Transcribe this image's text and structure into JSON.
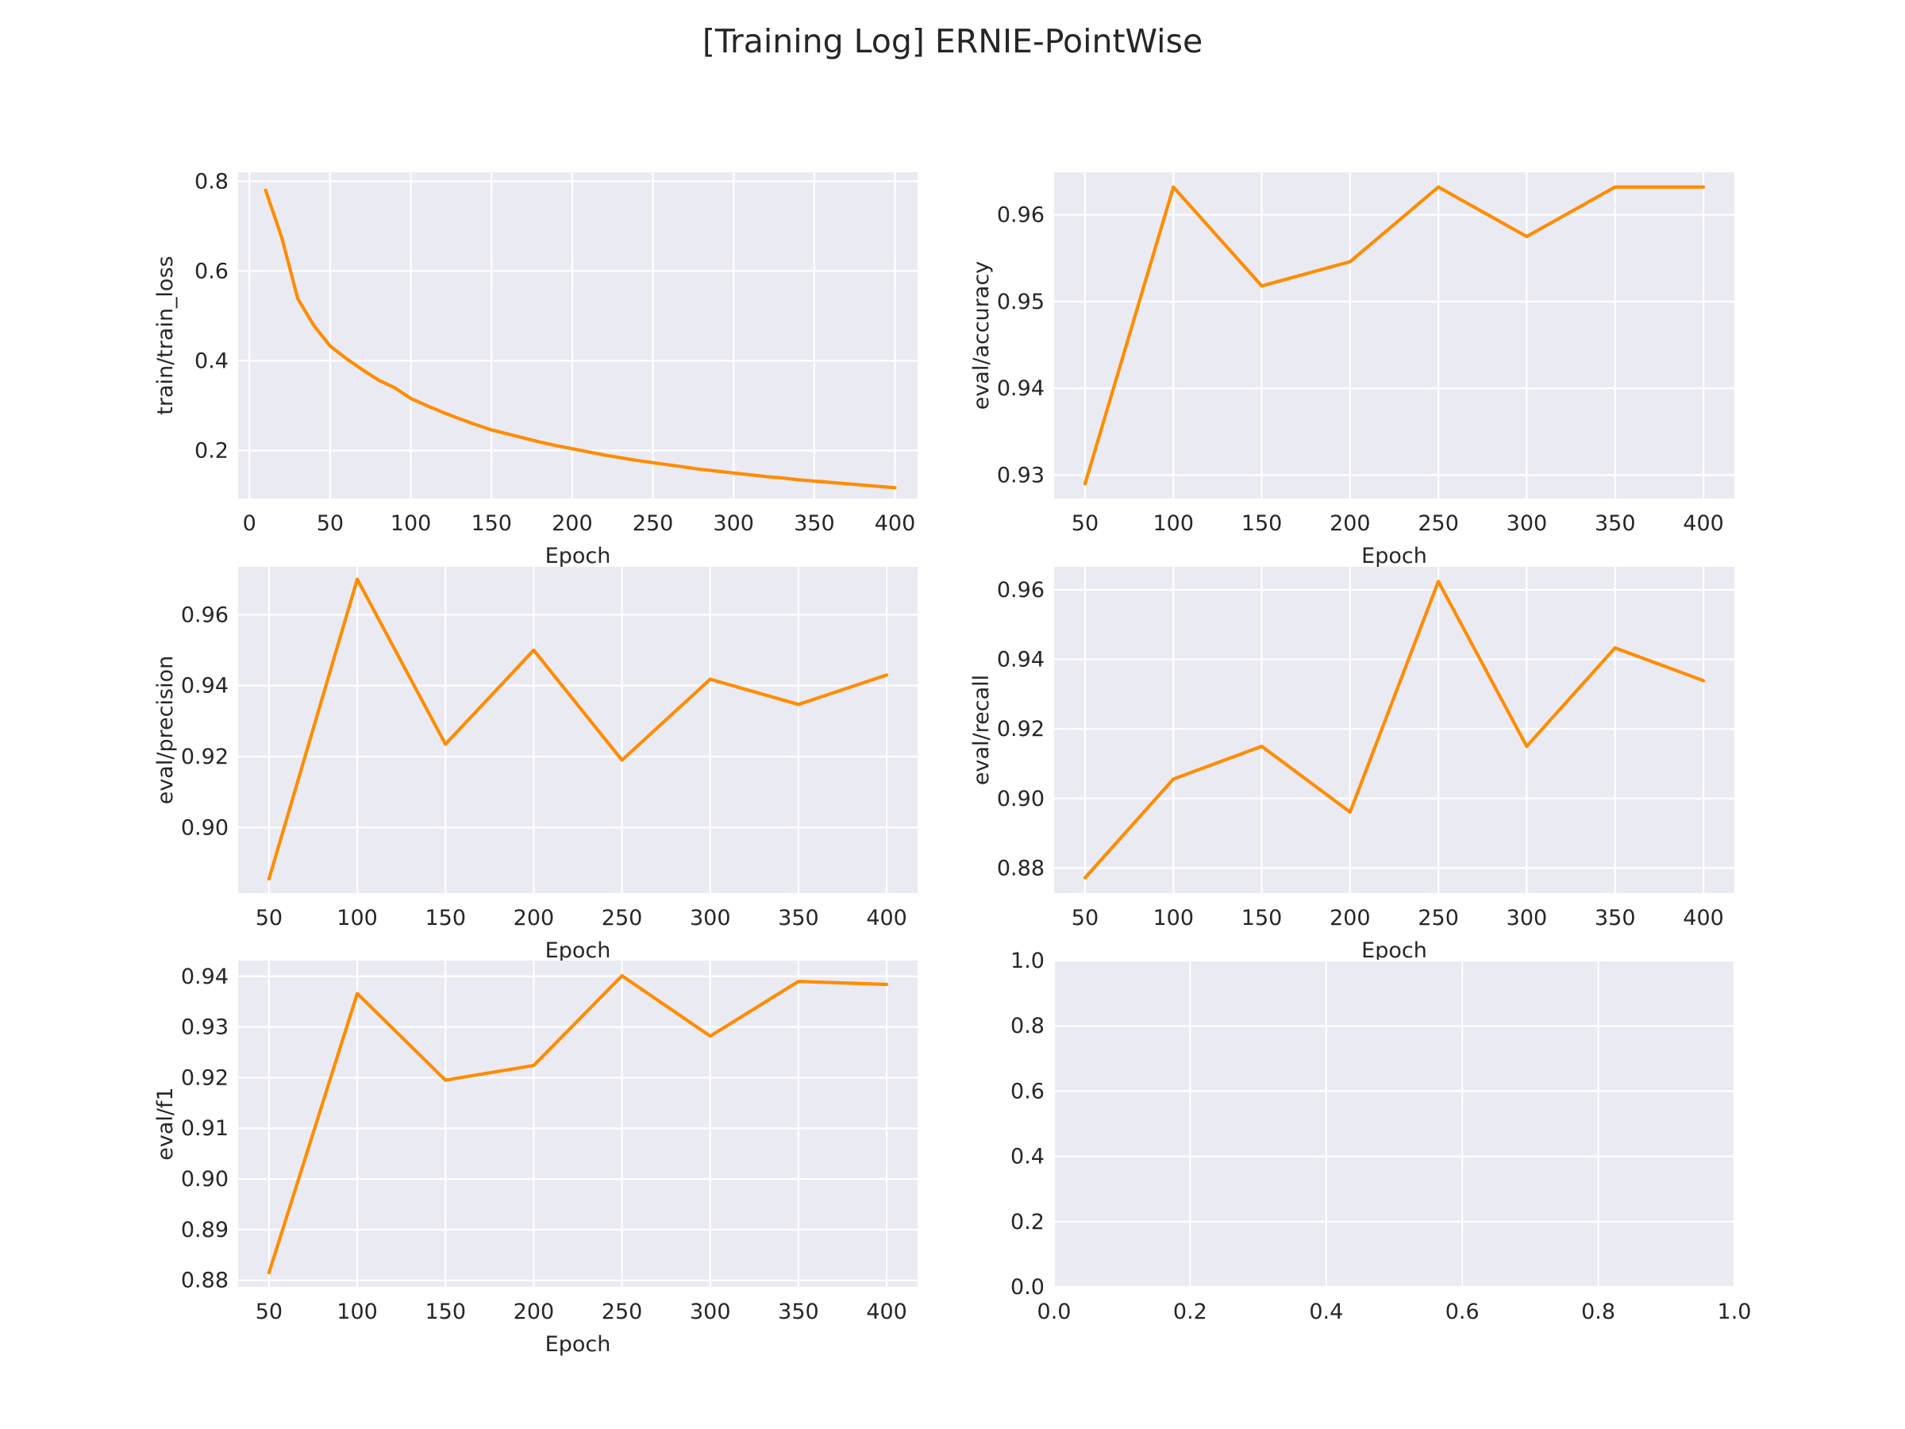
{
  "figure_title": "[Training Log] ERNIE-PointWise",
  "chart_data": [
    {
      "type": "line",
      "xlabel": "Epoch",
      "ylabel": "train/train_loss",
      "xlim": [
        -7,
        414
      ],
      "ylim": [
        0.093,
        0.82
      ],
      "xticks": [
        0,
        50,
        100,
        150,
        200,
        250,
        300,
        350,
        400
      ],
      "yticks": [
        0.2,
        0.4,
        0.6,
        0.8
      ],
      "ytick_labels": [
        "0.2",
        "0.4",
        "0.6",
        "0.8"
      ],
      "grid": true,
      "color": "#ff8c00",
      "x": [
        10,
        20,
        30,
        40,
        50,
        60,
        70,
        80,
        90,
        100,
        110,
        120,
        130,
        140,
        150,
        160,
        170,
        180,
        190,
        200,
        210,
        220,
        230,
        240,
        250,
        260,
        270,
        280,
        290,
        300,
        310,
        320,
        330,
        340,
        350,
        360,
        370,
        380,
        390,
        400
      ],
      "y": [
        0.78,
        0.675,
        0.538,
        0.478,
        0.433,
        0.405,
        0.38,
        0.357,
        0.34,
        0.316,
        0.3,
        0.285,
        0.271,
        0.258,
        0.246,
        0.237,
        0.228,
        0.219,
        0.211,
        0.204,
        0.197,
        0.19,
        0.184,
        0.178,
        0.173,
        0.168,
        0.163,
        0.158,
        0.154,
        0.15,
        0.146,
        0.142,
        0.139,
        0.135,
        0.132,
        0.129,
        0.126,
        0.123,
        0.12,
        0.117
      ]
    },
    {
      "type": "line",
      "xlabel": "Epoch",
      "ylabel": "eval/accuracy",
      "xlim": [
        32.5,
        417.5
      ],
      "ylim": [
        0.9273,
        0.9649
      ],
      "xticks": [
        50,
        100,
        150,
        200,
        250,
        300,
        350,
        400
      ],
      "yticks": [
        0.93,
        0.94,
        0.95,
        0.96
      ],
      "ytick_labels": [
        "0.93",
        "0.94",
        "0.95",
        "0.96"
      ],
      "grid": true,
      "color": "#ff8c00",
      "x": [
        50,
        100,
        150,
        200,
        250,
        300,
        350,
        400
      ],
      "y": [
        0.929,
        0.9632,
        0.9518,
        0.9546,
        0.9632,
        0.9575,
        0.9632,
        0.9632
      ]
    },
    {
      "type": "line",
      "xlabel": "Epoch",
      "ylabel": "eval/precision",
      "xlim": [
        32.5,
        417.5
      ],
      "ylim": [
        0.8815,
        0.9735
      ],
      "xticks": [
        50,
        100,
        150,
        200,
        250,
        300,
        350,
        400
      ],
      "yticks": [
        0.9,
        0.92,
        0.94,
        0.96
      ],
      "ytick_labels": [
        "0.90",
        "0.92",
        "0.94",
        "0.96"
      ],
      "grid": true,
      "color": "#ff8c00",
      "x": [
        50,
        100,
        150,
        200,
        250,
        300,
        350,
        400
      ],
      "y": [
        0.8855,
        0.97,
        0.9235,
        0.95,
        0.919,
        0.9418,
        0.9347,
        0.943
      ]
    },
    {
      "type": "line",
      "xlabel": "Epoch",
      "ylabel": "eval/recall",
      "xlim": [
        32.5,
        417.5
      ],
      "ylim": [
        0.8728,
        0.9666
      ],
      "xticks": [
        50,
        100,
        150,
        200,
        250,
        300,
        350,
        400
      ],
      "yticks": [
        0.88,
        0.9,
        0.92,
        0.94,
        0.96
      ],
      "ytick_labels": [
        "0.88",
        "0.90",
        "0.92",
        "0.94",
        "0.96"
      ],
      "grid": true,
      "color": "#ff8c00",
      "x": [
        50,
        100,
        150,
        200,
        250,
        300,
        350,
        400
      ],
      "y": [
        0.8772,
        0.9056,
        0.915,
        0.8961,
        0.9624,
        0.915,
        0.9433,
        0.9339
      ]
    },
    {
      "type": "line",
      "xlabel": "Epoch",
      "ylabel": "eval/f1",
      "xlim": [
        32.5,
        417.5
      ],
      "ylim": [
        0.8787,
        0.9431
      ],
      "xticks": [
        50,
        100,
        150,
        200,
        250,
        300,
        350,
        400
      ],
      "yticks": [
        0.88,
        0.89,
        0.9,
        0.91,
        0.92,
        0.93,
        0.94
      ],
      "ytick_labels": [
        "0.88",
        "0.89",
        "0.90",
        "0.91",
        "0.92",
        "0.93",
        "0.94"
      ],
      "grid": true,
      "color": "#ff8c00",
      "x": [
        50,
        100,
        150,
        200,
        250,
        300,
        350,
        400
      ],
      "y": [
        0.8815,
        0.9366,
        0.9195,
        0.9224,
        0.9401,
        0.9282,
        0.939,
        0.9384
      ]
    },
    {
      "type": "line",
      "xlabel": "",
      "ylabel": "",
      "xlim": [
        0,
        1
      ],
      "ylim": [
        0,
        1
      ],
      "xticks": [
        0,
        0.2,
        0.4,
        0.6,
        0.8,
        1.0
      ],
      "xtick_labels": [
        "0.0",
        "0.2",
        "0.4",
        "0.6",
        "0.8",
        "1.0"
      ],
      "yticks": [
        0,
        0.2,
        0.4,
        0.6,
        0.8,
        1.0
      ],
      "ytick_labels": [
        "0.0",
        "0.2",
        "0.4",
        "0.6",
        "0.8",
        "1.0"
      ],
      "grid": true,
      "color": "#ff8c00",
      "x": [],
      "y": []
    }
  ]
}
